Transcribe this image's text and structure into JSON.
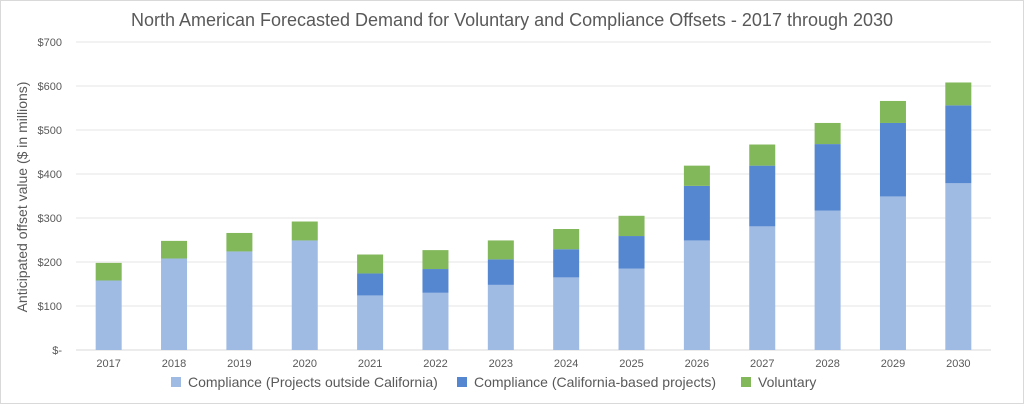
{
  "chart_data": {
    "type": "bar",
    "stacked": true,
    "title": "North American Forecasted Demand for Voluntary and Compliance Offsets - 2017 through 2030",
    "xlabel": "",
    "ylabel": "Anticipated offset value ($ in millions)",
    "ylim": [
      0,
      700
    ],
    "yticks": [
      0,
      100,
      200,
      300,
      400,
      500,
      600,
      700
    ],
    "ytick_labels": [
      "$-",
      "$100",
      "$200",
      "$300",
      "$400",
      "$500",
      "$600",
      "$700"
    ],
    "grid": true,
    "legend_position": "bottom",
    "categories": [
      "2017",
      "2018",
      "2019",
      "2020",
      "2021",
      "2022",
      "2023",
      "2024",
      "2025",
      "2026",
      "2027",
      "2028",
      "2029",
      "2030"
    ],
    "series": [
      {
        "name": "Compliance (Projects outside California)",
        "color": "#9fbae3",
        "values": [
          158,
          208,
          224,
          249,
          124,
          130,
          148,
          165,
          185,
          249,
          281,
          317,
          349,
          379
        ]
      },
      {
        "name": "Compliance (California-based projects)",
        "color": "#5587d0",
        "values": [
          0,
          0,
          0,
          0,
          50,
          54,
          58,
          64,
          74,
          124,
          138,
          151,
          167,
          177
        ]
      },
      {
        "name": "Voluntary",
        "color": "#82b75a",
        "values": [
          40,
          40,
          42,
          43,
          43,
          43,
          43,
          46,
          46,
          46,
          48,
          48,
          50,
          52
        ]
      }
    ]
  }
}
